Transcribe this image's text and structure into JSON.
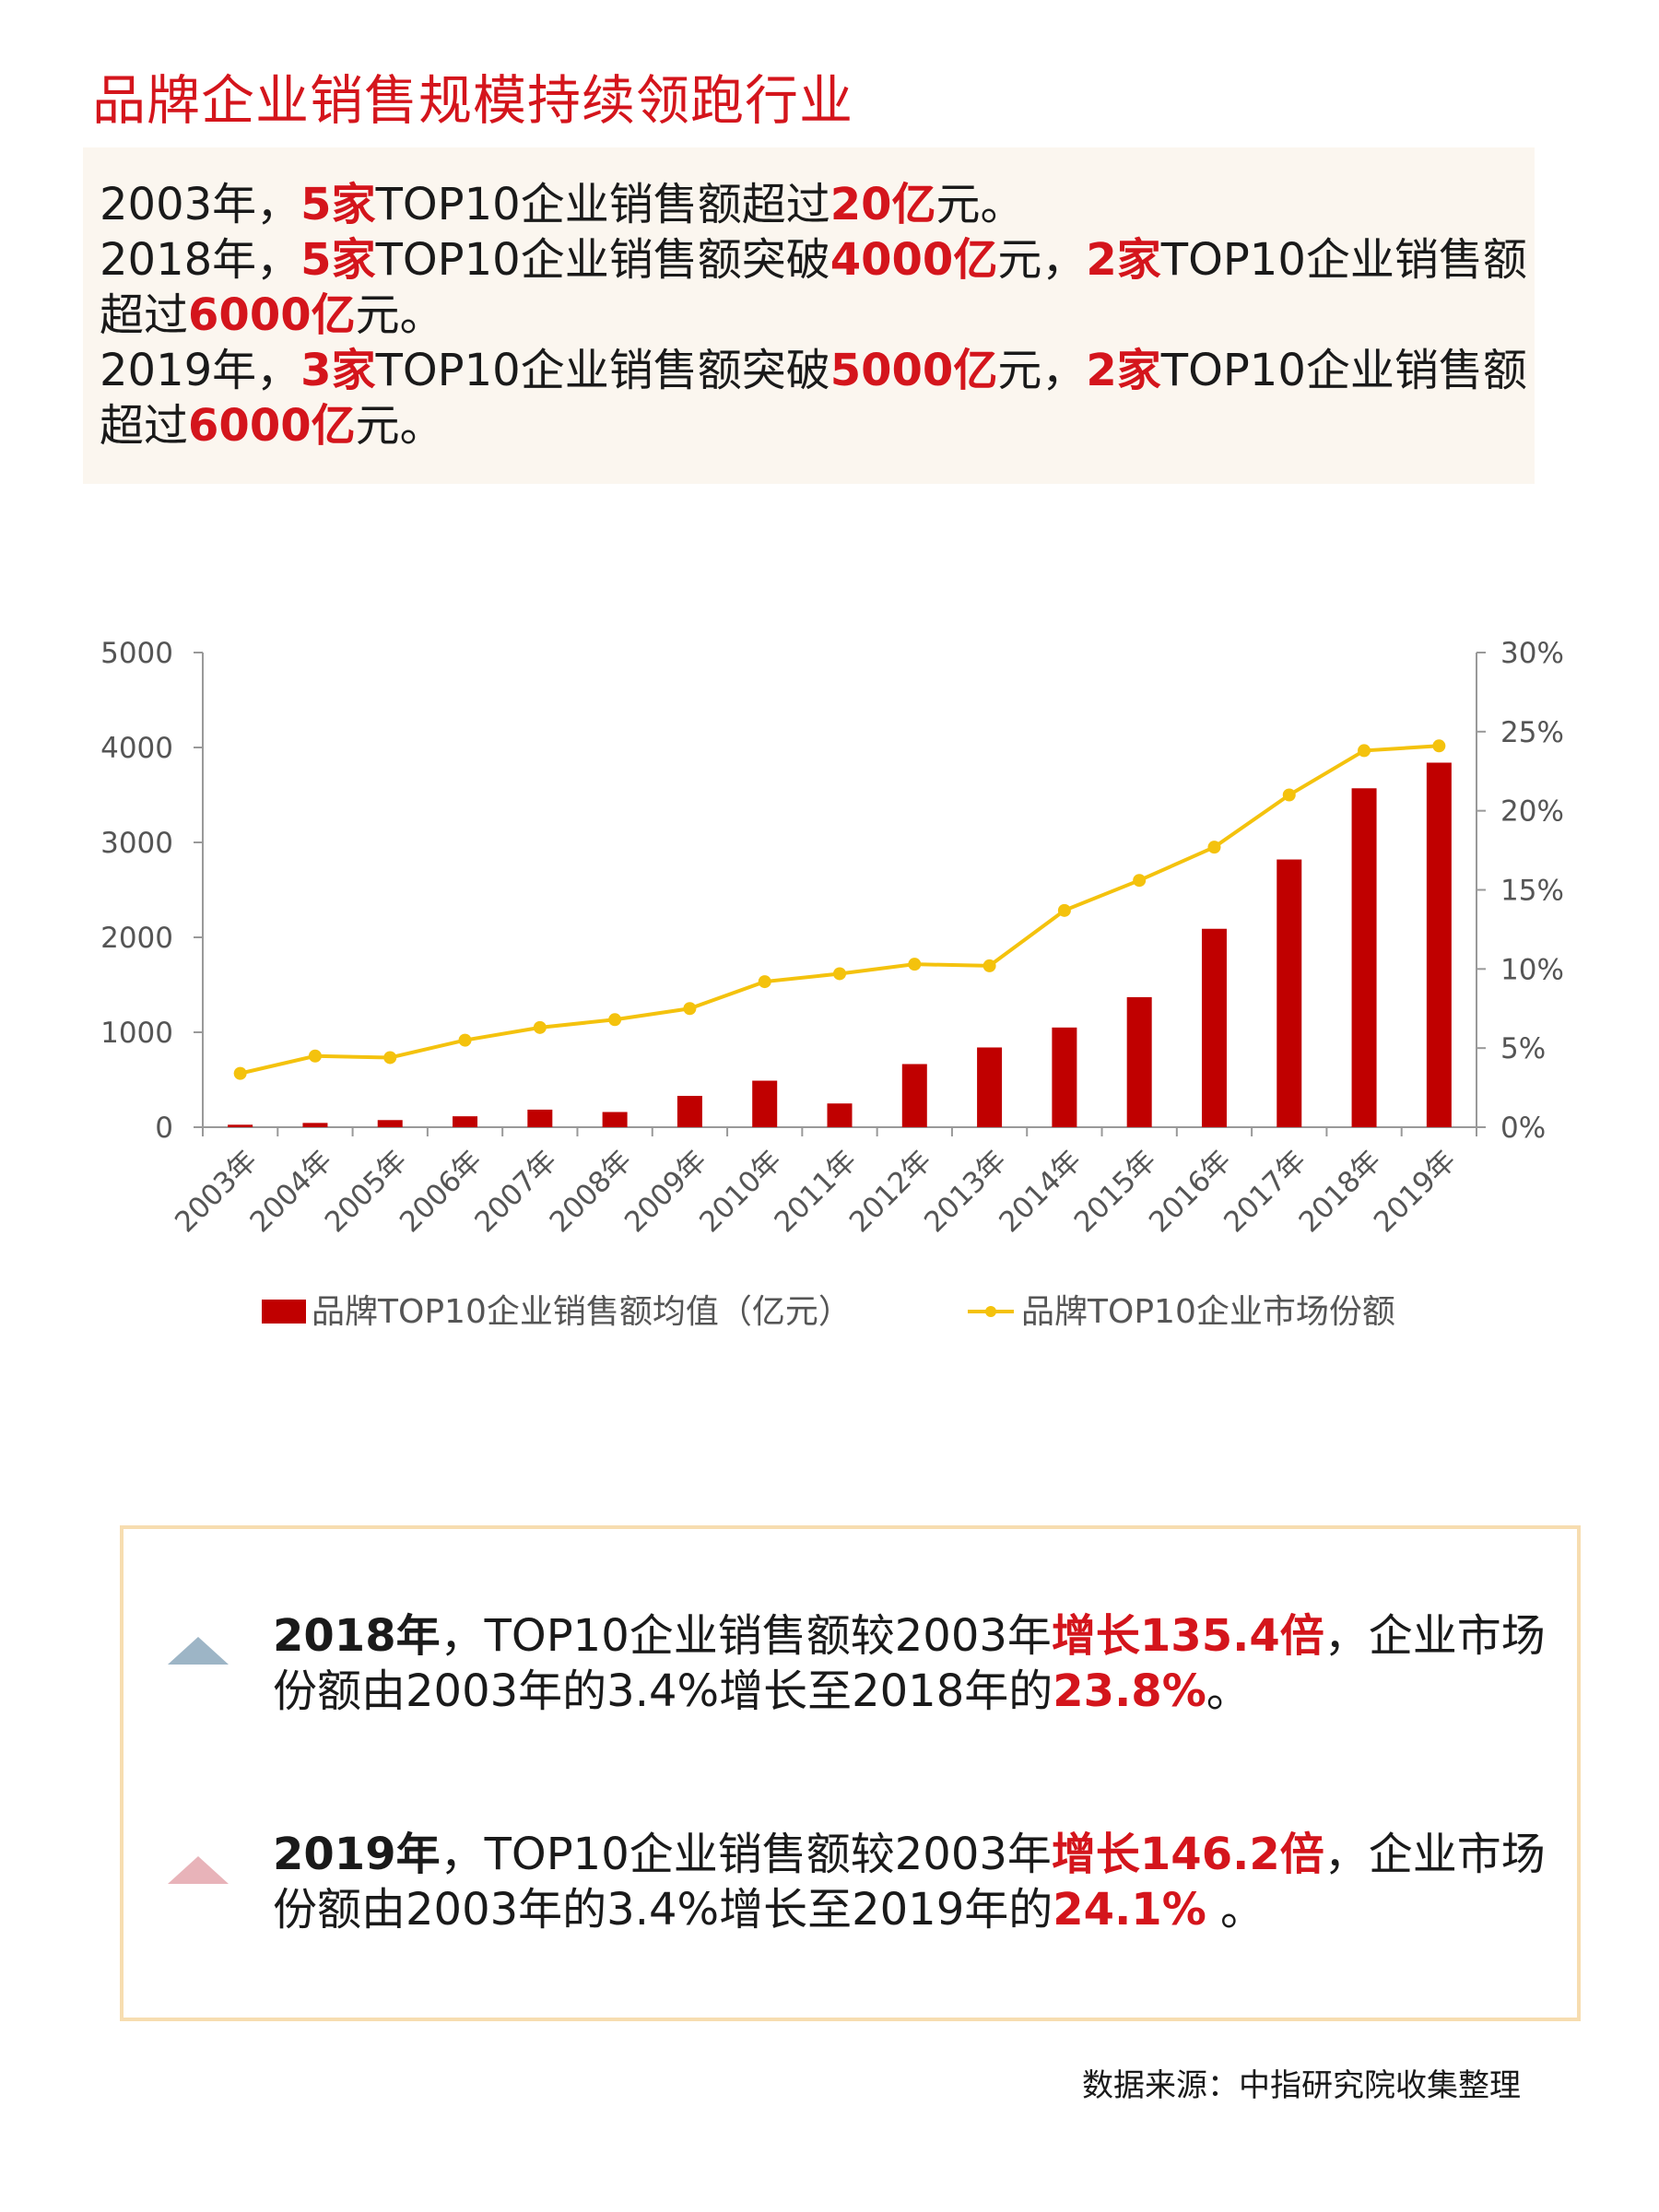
{
  "title": "品牌企业销售规模持续领跑行业",
  "summary": {
    "l1": {
      "a": "2003年，",
      "b": "5家",
      "c": "TOP10企业销售额超过",
      "d": "20亿",
      "e": "元。"
    },
    "l2": {
      "a": "2018年，",
      "b": "5家",
      "c": "TOP10企业销售额突破",
      "d": "4000亿",
      "e": "元，",
      "f": "2家",
      "g": "TOP10企业销售额超过",
      "h": "6000亿",
      "i": "元。"
    },
    "l3": {
      "a": "2019年，",
      "b": "3家",
      "c": "TOP10企业销售额突破",
      "d": "5000亿",
      "e": "元，",
      "f": "2家",
      "g": "TOP10企业销售额超过",
      "h": "6000亿",
      "i": "元。"
    }
  },
  "chart_data": {
    "type": "bar+line",
    "categories": [
      "2003年",
      "2004年",
      "2005年",
      "2006年",
      "2007年",
      "2008年",
      "2009年",
      "2010年",
      "2011年",
      "2012年",
      "2013年",
      "2014年",
      "2015年",
      "2016年",
      "2017年",
      "2018年",
      "2019年"
    ],
    "series": [
      {
        "name": "品牌TOP10企业销售额均值（亿元）",
        "type": "bar",
        "axis": "left",
        "values": [
          26,
          45,
          75,
          115,
          185,
          160,
          330,
          490,
          250,
          665,
          840,
          1050,
          1370,
          2090,
          2820,
          3570,
          3840
        ]
      },
      {
        "name": "品牌TOP10企业市场份额",
        "type": "line",
        "axis": "right",
        "values": [
          3.4,
          4.5,
          4.4,
          5.5,
          6.3,
          6.8,
          7.5,
          9.2,
          9.7,
          10.3,
          10.2,
          13.7,
          15.6,
          17.7,
          21.0,
          23.8,
          24.1
        ]
      }
    ],
    "y_left": {
      "min": 0,
      "max": 5000,
      "ticks": [
        "0",
        "1000",
        "2000",
        "3000",
        "4000",
        "5000"
      ]
    },
    "y_right": {
      "min": 0,
      "max": 30,
      "ticks": [
        "0%",
        "5%",
        "10%",
        "15%",
        "20%",
        "25%",
        "30%"
      ]
    },
    "legend_position": "bottom",
    "colors": {
      "bar": "#c00000",
      "line": "#f4c20d"
    }
  },
  "notes": [
    {
      "year": "2018年",
      "t1": "，TOP10企业销售额较2003年",
      "hl1": "增长135.4倍",
      "t2": "，企业市场份额由2003年的3.4%增长至2018年的",
      "hl2": "23.8%",
      "t3": "。"
    },
    {
      "year": "2019年",
      "t1": "，TOP10企业销售额较2003年",
      "hl1": "增长146.2倍",
      "t2": "，企业市场份额由2003年的3.4%增长至2019年的",
      "hl2": "24.1%",
      "t3": " 。"
    }
  ],
  "source": "数据来源：中指研究院收集整理"
}
